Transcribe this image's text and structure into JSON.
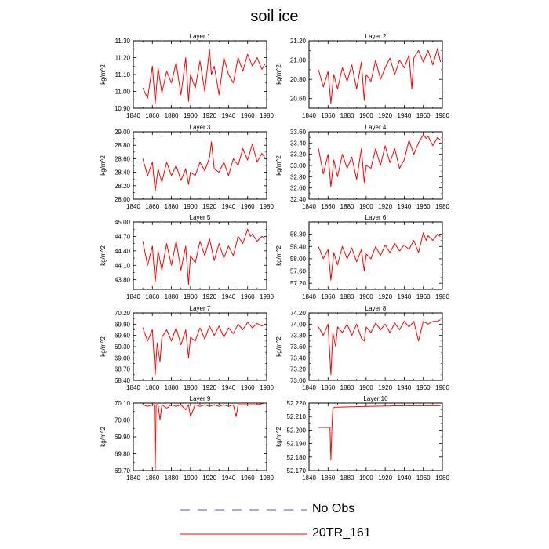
{
  "figure": {
    "title": "soil ice",
    "legend": [
      {
        "label": "No Obs",
        "color": "#5555cc",
        "dashed": true
      },
      {
        "label": "20TR_161",
        "color": "#ff0000",
        "dashed": false
      }
    ]
  },
  "chart_data": [
    {
      "type": "line",
      "title": "Layer 1",
      "ylabel": "kg/m^2",
      "xlim": [
        1840,
        1980
      ],
      "ylim": [
        10.9,
        11.3
      ],
      "xticks": [
        1840,
        1860,
        1880,
        1900,
        1920,
        1940,
        1960,
        1980
      ],
      "yticks": [
        "10.90",
        "11.00",
        "11.10",
        "11.20",
        "11.30"
      ],
      "series": [
        {
          "x": [
            1850,
            1855,
            1860,
            1863,
            1866,
            1870,
            1875,
            1880,
            1885,
            1890,
            1895,
            1898,
            1900,
            1905,
            1910,
            1915,
            1920,
            1922,
            1925,
            1930,
            1935,
            1940,
            1945,
            1950,
            1955,
            1960,
            1965,
            1970,
            1975,
            1978
          ],
          "y": [
            11.02,
            10.96,
            11.15,
            10.93,
            11.14,
            10.99,
            11.12,
            11.05,
            11.17,
            10.98,
            11.2,
            10.94,
            11.1,
            11.02,
            11.18,
            11.0,
            11.25,
            11.1,
            11.15,
            10.98,
            11.2,
            11.1,
            11.05,
            11.2,
            11.12,
            11.22,
            11.15,
            11.2,
            11.13,
            11.16
          ]
        }
      ]
    },
    {
      "type": "line",
      "title": "Layer 2",
      "ylabel": "kg/m^2",
      "xlim": [
        1840,
        1980
      ],
      "ylim": [
        20.5,
        21.2
      ],
      "xticks": [
        1840,
        1860,
        1880,
        1900,
        1920,
        1940,
        1960,
        1980
      ],
      "yticks": [
        "20.60",
        "20.80",
        "21.00",
        "21.20"
      ],
      "series": [
        {
          "x": [
            1850,
            1855,
            1860,
            1863,
            1866,
            1870,
            1875,
            1880,
            1885,
            1890,
            1895,
            1898,
            1900,
            1905,
            1910,
            1915,
            1920,
            1925,
            1930,
            1935,
            1940,
            1945,
            1948,
            1950,
            1955,
            1960,
            1965,
            1970,
            1975,
            1978
          ],
          "y": [
            20.9,
            20.72,
            20.88,
            20.55,
            20.85,
            20.7,
            20.92,
            20.78,
            20.95,
            20.7,
            20.98,
            20.58,
            20.85,
            20.78,
            21.0,
            20.8,
            20.92,
            21.02,
            20.85,
            21.0,
            20.92,
            21.05,
            20.7,
            21.02,
            21.1,
            20.98,
            21.1,
            20.95,
            21.12,
            20.98
          ]
        }
      ]
    },
    {
      "type": "line",
      "title": "Layer 3",
      "ylabel": "kg/m^2",
      "xlim": [
        1840,
        1980
      ],
      "ylim": [
        28.0,
        29.0
      ],
      "xticks": [
        1840,
        1860,
        1880,
        1900,
        1920,
        1940,
        1960,
        1980
      ],
      "yticks": [
        "28.00",
        "28.20",
        "28.40",
        "28.60",
        "28.80",
        "29.00"
      ],
      "series": [
        {
          "x": [
            1850,
            1855,
            1860,
            1863,
            1866,
            1870,
            1875,
            1880,
            1885,
            1890,
            1895,
            1898,
            1900,
            1905,
            1910,
            1915,
            1920,
            1922,
            1925,
            1930,
            1935,
            1940,
            1945,
            1950,
            1955,
            1960,
            1965,
            1970,
            1975,
            1978
          ],
          "y": [
            28.6,
            28.35,
            28.55,
            28.12,
            28.45,
            28.25,
            28.55,
            28.35,
            28.5,
            28.28,
            28.45,
            28.22,
            28.4,
            28.35,
            28.55,
            28.42,
            28.62,
            28.85,
            28.45,
            28.4,
            28.55,
            28.35,
            28.6,
            28.5,
            28.75,
            28.58,
            28.82,
            28.55,
            28.68,
            28.62
          ]
        }
      ]
    },
    {
      "type": "line",
      "title": "Layer 4",
      "ylabel": "kg/m^2",
      "xlim": [
        1840,
        1980
      ],
      "ylim": [
        32.4,
        33.6
      ],
      "xticks": [
        1840,
        1860,
        1880,
        1900,
        1920,
        1940,
        1960,
        1980
      ],
      "yticks": [
        "32.40",
        "32.60",
        "32.80",
        "33.00",
        "33.20",
        "33.40",
        "33.60"
      ],
      "series": [
        {
          "x": [
            1850,
            1855,
            1860,
            1863,
            1866,
            1870,
            1875,
            1880,
            1885,
            1890,
            1895,
            1898,
            1900,
            1905,
            1910,
            1915,
            1920,
            1925,
            1930,
            1935,
            1940,
            1945,
            1950,
            1955,
            1960,
            1963,
            1965,
            1970,
            1975,
            1978
          ],
          "y": [
            33.3,
            32.85,
            33.2,
            32.62,
            33.1,
            32.8,
            33.2,
            32.95,
            33.15,
            32.75,
            33.3,
            32.7,
            33.0,
            32.95,
            33.3,
            33.0,
            33.35,
            33.05,
            33.3,
            32.95,
            33.1,
            33.45,
            33.2,
            33.4,
            33.55,
            33.48,
            33.52,
            33.35,
            33.5,
            33.45
          ]
        }
      ]
    },
    {
      "type": "line",
      "title": "Layer 5",
      "ylabel": "kg/m^2",
      "xlim": [
        1840,
        1980
      ],
      "ylim": [
        43.6,
        45.0
      ],
      "xticks": [
        1840,
        1860,
        1880,
        1900,
        1920,
        1940,
        1960,
        1980
      ],
      "yticks": [
        "43.80",
        "44.10",
        "44.40",
        "44.70",
        "45.00"
      ],
      "series": [
        {
          "x": [
            1850,
            1855,
            1860,
            1863,
            1866,
            1870,
            1875,
            1880,
            1885,
            1890,
            1895,
            1898,
            1900,
            1905,
            1910,
            1915,
            1920,
            1925,
            1930,
            1935,
            1940,
            1945,
            1950,
            1955,
            1960,
            1963,
            1965,
            1970,
            1975,
            1978
          ],
          "y": [
            44.6,
            44.1,
            44.5,
            43.75,
            44.4,
            44.0,
            44.55,
            44.1,
            44.6,
            44.0,
            44.5,
            43.7,
            44.3,
            44.15,
            44.6,
            44.3,
            44.65,
            44.2,
            44.55,
            44.25,
            44.5,
            44.3,
            44.7,
            44.55,
            44.85,
            44.7,
            44.75,
            44.6,
            44.7,
            44.65
          ]
        }
      ]
    },
    {
      "type": "line",
      "title": "Layer 6",
      "ylabel": "kg/m^2",
      "xlim": [
        1840,
        1980
      ],
      "ylim": [
        57.0,
        59.2
      ],
      "xticks": [
        1840,
        1860,
        1880,
        1900,
        1920,
        1940,
        1960,
        1980
      ],
      "yticks": [
        "57.20",
        "57.60",
        "58.00",
        "58.40",
        "58.80"
      ],
      "series": [
        {
          "x": [
            1850,
            1855,
            1860,
            1863,
            1866,
            1870,
            1875,
            1880,
            1885,
            1890,
            1895,
            1898,
            1900,
            1905,
            1910,
            1915,
            1920,
            1925,
            1930,
            1935,
            1940,
            1945,
            1950,
            1955,
            1960,
            1963,
            1965,
            1970,
            1975,
            1978
          ],
          "y": [
            58.4,
            58.0,
            58.3,
            57.3,
            58.2,
            57.8,
            58.4,
            58.0,
            58.35,
            57.9,
            58.3,
            57.6,
            58.15,
            58.0,
            58.4,
            58.1,
            58.45,
            58.2,
            58.5,
            58.25,
            58.45,
            58.3,
            58.6,
            58.2,
            58.85,
            58.6,
            58.75,
            58.6,
            58.8,
            58.72
          ]
        }
      ]
    },
    {
      "type": "line",
      "title": "Layer 7",
      "ylabel": "kg/m^2",
      "xlim": [
        1840,
        1980
      ],
      "ylim": [
        68.4,
        70.2
      ],
      "xticks": [
        1840,
        1860,
        1880,
        1900,
        1920,
        1940,
        1960,
        1980
      ],
      "yticks": [
        "68.40",
        "68.70",
        "69.00",
        "69.30",
        "69.60",
        "69.90",
        "70.20"
      ],
      "series": [
        {
          "x": [
            1850,
            1855,
            1860,
            1863,
            1865,
            1868,
            1870,
            1875,
            1880,
            1885,
            1890,
            1895,
            1898,
            1900,
            1905,
            1910,
            1915,
            1920,
            1925,
            1930,
            1935,
            1940,
            1945,
            1950,
            1955,
            1960,
            1965,
            1970,
            1975,
            1978
          ],
          "y": [
            69.8,
            69.45,
            69.75,
            68.55,
            69.4,
            68.9,
            69.55,
            69.75,
            69.45,
            69.8,
            69.35,
            69.75,
            69.0,
            69.55,
            69.45,
            69.8,
            69.5,
            69.85,
            69.6,
            69.85,
            69.55,
            69.8,
            69.65,
            69.9,
            69.75,
            69.95,
            69.8,
            69.92,
            69.85,
            69.9
          ]
        }
      ]
    },
    {
      "type": "line",
      "title": "Layer 8",
      "ylabel": "kg/m^2",
      "xlim": [
        1840,
        1980
      ],
      "ylim": [
        73.0,
        74.2
      ],
      "xticks": [
        1840,
        1860,
        1880,
        1900,
        1920,
        1940,
        1960,
        1980
      ],
      "yticks": [
        "73.00",
        "73.20",
        "73.40",
        "73.60",
        "73.80",
        "74.00",
        "74.20"
      ],
      "series": [
        {
          "x": [
            1850,
            1855,
            1860,
            1863,
            1865,
            1868,
            1870,
            1875,
            1880,
            1885,
            1890,
            1895,
            1898,
            1900,
            1905,
            1910,
            1915,
            1920,
            1925,
            1930,
            1935,
            1940,
            1945,
            1950,
            1955,
            1960,
            1965,
            1970,
            1975,
            1978
          ],
          "y": [
            73.95,
            73.8,
            74.0,
            73.1,
            73.85,
            73.6,
            73.95,
            73.85,
            74.0,
            73.8,
            74.0,
            73.75,
            73.7,
            73.95,
            73.85,
            74.02,
            73.9,
            74.0,
            73.85,
            74.02,
            73.9,
            74.05,
            73.95,
            74.05,
            73.7,
            74.05,
            74.0,
            74.05,
            74.05,
            74.08
          ]
        }
      ]
    },
    {
      "type": "line",
      "title": "Layer 9",
      "ylabel": "kg/m^2",
      "xlim": [
        1840,
        1980
      ],
      "ylim": [
        69.7,
        70.1
      ],
      "xticks": [
        1840,
        1860,
        1880,
        1900,
        1920,
        1940,
        1960,
        1980
      ],
      "yticks": [
        "69.70",
        "69.80",
        "69.90",
        "70.00",
        "70.10"
      ],
      "series": [
        {
          "x": [
            1850,
            1855,
            1860,
            1862,
            1863,
            1864,
            1866,
            1868,
            1870,
            1875,
            1880,
            1885,
            1890,
            1895,
            1898,
            1900,
            1905,
            1910,
            1915,
            1920,
            1925,
            1930,
            1935,
            1940,
            1945,
            1948,
            1950,
            1955,
            1960,
            1970,
            1978
          ],
          "y": [
            70.09,
            70.08,
            70.09,
            70.09,
            69.7,
            70.09,
            70.09,
            70.0,
            70.09,
            70.07,
            70.09,
            70.08,
            70.09,
            70.06,
            70.09,
            70.02,
            70.09,
            70.08,
            70.09,
            70.08,
            70.09,
            70.08,
            70.09,
            70.08,
            70.09,
            70.02,
            70.09,
            70.09,
            70.09,
            70.09,
            70.1
          ]
        }
      ]
    },
    {
      "type": "line",
      "title": "Layer 10",
      "ylabel": "kg/m^2",
      "xlim": [
        1840,
        1980
      ],
      "ylim": [
        52.17,
        52.22
      ],
      "xticks": [
        1840,
        1860,
        1880,
        1900,
        1920,
        1940,
        1960,
        1980
      ],
      "yticks": [
        "52.170",
        "52.180",
        "52.190",
        "52.200",
        "52.210",
        "52.220"
      ],
      "series": [
        {
          "x": [
            1850,
            1862,
            1863,
            1864,
            1865,
            1867,
            1870,
            1900,
            1940,
            1978
          ],
          "y": [
            52.202,
            52.202,
            52.178,
            52.2,
            52.216,
            52.217,
            52.217,
            52.2175,
            52.218,
            52.218
          ]
        }
      ]
    }
  ]
}
